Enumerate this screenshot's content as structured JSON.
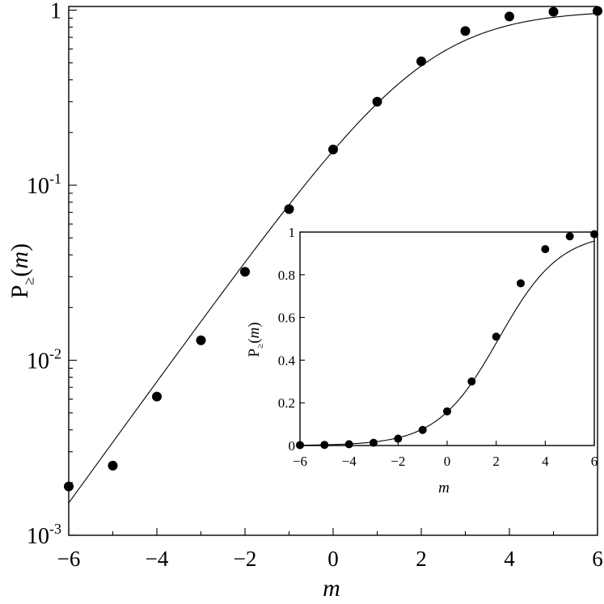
{
  "chart_data": [
    {
      "type": "scatter",
      "xlabel": "m",
      "ylabel": "P≥(m)",
      "yscale": "log",
      "xlim": [
        -6,
        6
      ],
      "ylim": [
        0.001,
        1.05
      ],
      "xticks": [
        -6,
        -4,
        -2,
        0,
        2,
        4,
        6
      ],
      "xtick_labels": [
        "−6",
        "−4",
        "−2",
        "0",
        "2",
        "4",
        "6"
      ],
      "yticks": [
        {
          "value": 0.001,
          "base": "10",
          "exp": "-3"
        },
        {
          "value": 0.01,
          "base": "10",
          "exp": "-2"
        },
        {
          "value": 0.1,
          "base": "10",
          "exp": "-1"
        },
        {
          "value": 1,
          "base": "1",
          "exp": ""
        }
      ],
      "grid": false,
      "series": [
        {
          "kind": "points",
          "x": [
            -6,
            -5,
            -4,
            -3,
            -2,
            -1,
            0,
            1,
            2,
            3,
            4,
            5,
            6
          ],
          "y": [
            0.0019,
            0.0025,
            0.0062,
            0.013,
            0.032,
            0.073,
            0.16,
            0.3,
            0.51,
            0.76,
            0.92,
            0.98,
            0.99
          ]
        },
        {
          "kind": "fit-curve",
          "curve": "logistic: 1 / (1 + exp(-0.8*(m - 2.1)))"
        }
      ]
    },
    {
      "type": "scatter",
      "xlabel": "m",
      "ylabel": "P≥(m)",
      "yscale": "linear",
      "xlim": [
        -6,
        6
      ],
      "ylim": [
        0,
        1
      ],
      "xticks": [
        -6,
        -4,
        -2,
        0,
        2,
        4,
        6
      ],
      "xtick_labels": [
        "−6",
        "−4",
        "−2",
        "0",
        "2",
        "4",
        "6"
      ],
      "yticks": [
        0,
        0.2,
        0.4,
        0.6,
        0.8,
        1
      ],
      "ytick_labels": [
        "0",
        "0.2",
        "0.4",
        "0.6",
        "0.8",
        "1"
      ],
      "grid": false,
      "series": [
        {
          "kind": "points",
          "x": [
            -6,
            -5,
            -4,
            -3,
            -2,
            -1,
            0,
            1,
            2,
            3,
            4,
            5,
            6
          ],
          "y": [
            0.002,
            0.003,
            0.006,
            0.013,
            0.032,
            0.073,
            0.16,
            0.3,
            0.51,
            0.76,
            0.92,
            0.98,
            0.99
          ]
        },
        {
          "kind": "fit-curve",
          "curve": "logistic: 1 / (1 + exp(-0.8*(m - 2.1)))"
        }
      ]
    }
  ]
}
